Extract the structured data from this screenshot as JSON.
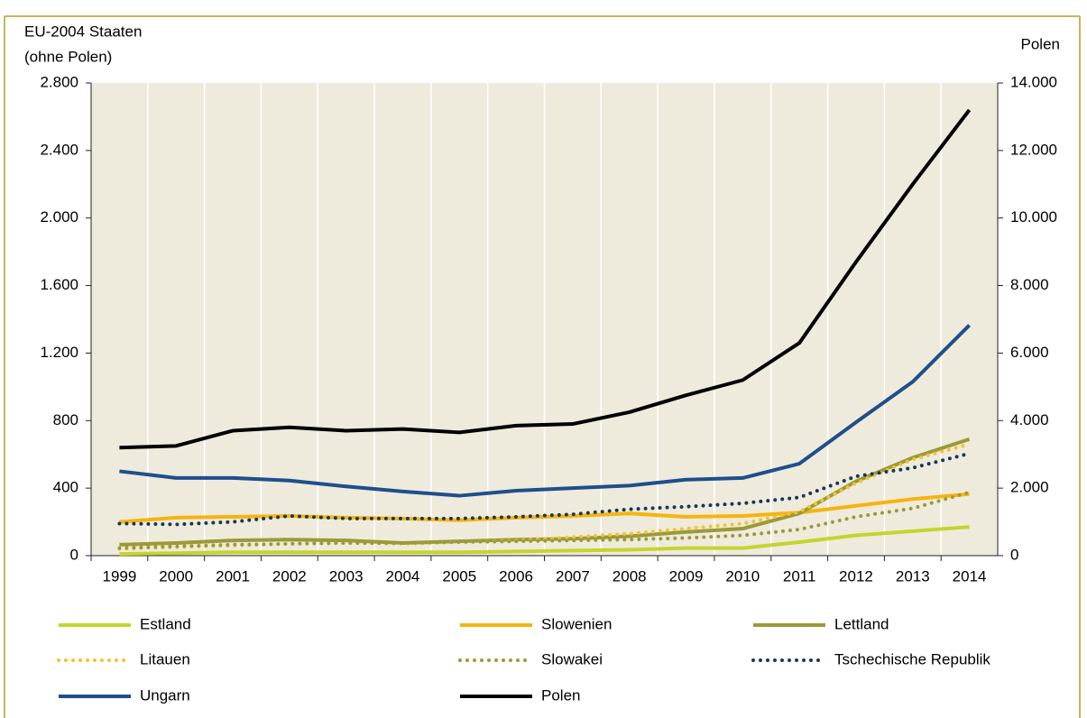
{
  "chart_data": {
    "type": "line",
    "ylabel": [
      "EU-2004 Staaten",
      "(ohne Polen)"
    ],
    "y2label": "Polen",
    "categories": [
      "1999",
      "2000",
      "2001",
      "2002",
      "2003",
      "2004",
      "2005",
      "2006",
      "2007",
      "2008",
      "2009",
      "2010",
      "2011",
      "2012",
      "2013",
      "2014"
    ],
    "ylim": [
      0,
      2800
    ],
    "yticks": [
      0,
      400,
      800,
      {
        "value": 1200,
        "label": "1.200"
      },
      {
        "value": 1600,
        "label": "1.600"
      },
      {
        "value": 2000,
        "label": "2.000"
      },
      {
        "value": 2400,
        "label": "2.400"
      },
      {
        "value": 2800,
        "label": "2.800"
      }
    ],
    "y2lim": [
      0,
      14000
    ],
    "y2ticks": [
      0,
      {
        "value": 2000,
        "label": "2.000"
      },
      {
        "value": 4000,
        "label": "4.000"
      },
      {
        "value": 6000,
        "label": "6.000"
      },
      {
        "value": 8000,
        "label": "8.000"
      },
      {
        "value": 10000,
        "label": "10.000"
      },
      {
        "value": 12000,
        "label": "12.000"
      },
      {
        "value": 14000,
        "label": "14.000"
      }
    ],
    "grid": true,
    "legend": "bottom",
    "series": [
      {
        "name": "Estland",
        "color": "#c3d52e",
        "style": "solid",
        "values": [
          10,
          15,
          20,
          20,
          20,
          20,
          20,
          25,
          30,
          35,
          45,
          45,
          80,
          120,
          145,
          170
        ]
      },
      {
        "name": "Slowenien",
        "color": "#f6b40e",
        "style": "solid",
        "values": [
          200,
          225,
          230,
          235,
          225,
          220,
          210,
          225,
          235,
          250,
          230,
          235,
          255,
          295,
          335,
          365
        ]
      },
      {
        "name": "Lettland",
        "color": "#9a9a38",
        "style": "solid",
        "values": [
          65,
          75,
          90,
          95,
          90,
          75,
          85,
          95,
          100,
          115,
          140,
          160,
          250,
          440,
          580,
          690
        ]
      },
      {
        "name": "Litauen",
        "color": "#f6c22e",
        "style": "dotted",
        "values": [
          40,
          50,
          60,
          70,
          75,
          70,
          80,
          90,
          110,
          130,
          160,
          190,
          260,
          430,
          570,
          660
        ]
      },
      {
        "name": "Slowakei",
        "color": "#9a9a38",
        "style": "dotted",
        "values": [
          45,
          55,
          65,
          70,
          75,
          75,
          80,
          85,
          90,
          95,
          105,
          120,
          155,
          230,
          280,
          375
        ]
      },
      {
        "name": "Tschechische Republik",
        "color": "#17375e",
        "style": "dotted",
        "values": [
          190,
          185,
          200,
          235,
          220,
          220,
          220,
          230,
          245,
          275,
          290,
          310,
          345,
          470,
          520,
          605
        ]
      },
      {
        "name": "Ungarn",
        "color": "#1f4e8c",
        "style": "solid",
        "values": [
          500,
          460,
          460,
          445,
          410,
          380,
          355,
          385,
          400,
          415,
          450,
          460,
          545,
          790,
          1030,
          1365
        ]
      },
      {
        "name": "Polen",
        "color": "#000000",
        "style": "solid",
        "axis": "y2",
        "values": [
          3200,
          3250,
          3700,
          3800,
          3700,
          3750,
          3650,
          3850,
          3900,
          4250,
          4750,
          5200,
          6300,
          8700,
          11000,
          13200
        ]
      }
    ]
  }
}
